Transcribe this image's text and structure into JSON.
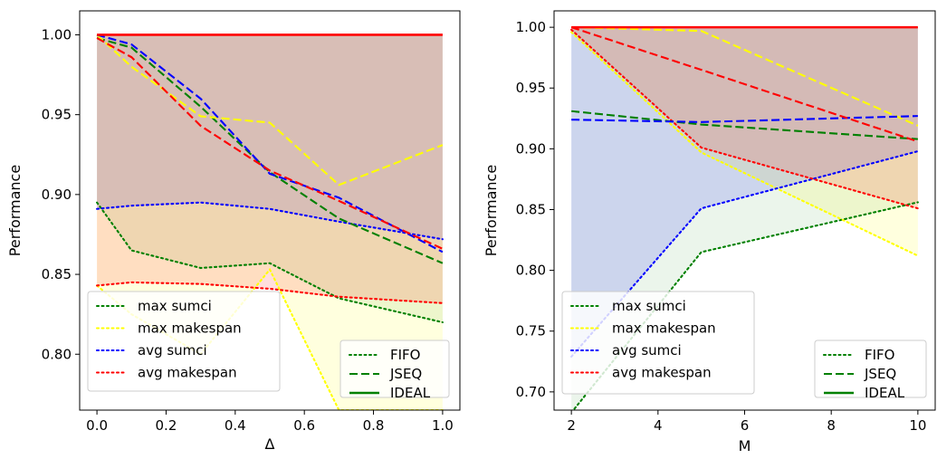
{
  "chart_data": [
    {
      "type": "line",
      "xlabel": "Δ",
      "ylabel": "Performance",
      "xlim": [
        -0.05,
        1.05
      ],
      "ylim": [
        0.765,
        1.015
      ],
      "xticks": [
        0.0,
        0.2,
        0.4,
        0.6,
        0.8,
        1.0
      ],
      "xtick_labels": [
        "0.0",
        "0.2",
        "0.4",
        "0.6",
        "0.8",
        "1.0"
      ],
      "yticks": [
        0.8,
        0.85,
        0.9,
        0.95,
        1.0
      ],
      "ytick_labels": [
        "0.80",
        "0.85",
        "0.90",
        "0.95",
        "1.00"
      ],
      "grid": false,
      "fills": [
        {
          "name": "max sumci",
          "color": "#008000",
          "upper": 1.0,
          "lower": [
            0.895,
            0.865,
            0.854,
            0.857,
            0.835,
            0.82
          ],
          "x": [
            0.0,
            0.1,
            0.3,
            0.5,
            0.7,
            1.0
          ],
          "opacity": 0.08
        },
        {
          "name": "max makespan",
          "color": "#ffff00",
          "upper": 1.0,
          "lower": [
            0.843,
            0.825,
            0.8,
            0.853,
            0.765,
            0.765
          ],
          "x": [
            0.0,
            0.1,
            0.3,
            0.5,
            0.7,
            1.0
          ],
          "opacity": 0.13
        },
        {
          "name": "avg sumci",
          "color": "#0000ff",
          "upper": 1.0,
          "lower": [
            0.891,
            0.893,
            0.895,
            0.891,
            0.883,
            0.872
          ],
          "x": [
            0.0,
            0.1,
            0.3,
            0.5,
            0.7,
            1.0
          ],
          "opacity": 0.11
        },
        {
          "name": "avg makespan",
          "color": "#ff0000",
          "upper": 1.0,
          "lower": [
            0.843,
            0.845,
            0.844,
            0.841,
            0.836,
            0.832
          ],
          "x": [
            0.0,
            0.1,
            0.3,
            0.5,
            0.7,
            1.0
          ],
          "opacity": 0.13
        }
      ],
      "series": [
        {
          "name": "max sumci",
          "metric": "max sumci",
          "algorithm": "FIFO",
          "color": "#008000",
          "style": "dotted",
          "x": [
            0.0,
            0.1,
            0.3,
            0.5,
            0.7,
            1.0
          ],
          "y": [
            0.895,
            0.865,
            0.854,
            0.857,
            0.835,
            0.82
          ]
        },
        {
          "name": "max makespan",
          "metric": "max makespan",
          "algorithm": "FIFO",
          "color": "#ffff00",
          "style": "dotted",
          "x": [
            0.0,
            0.1,
            0.3,
            0.5,
            0.7,
            1.0
          ],
          "y": [
            0.843,
            0.825,
            0.8,
            0.853,
            0.765,
            0.765
          ]
        },
        {
          "name": "avg sumci",
          "metric": "avg sumci",
          "algorithm": "FIFO",
          "color": "#0000ff",
          "style": "dotted",
          "x": [
            0.0,
            0.1,
            0.3,
            0.5,
            0.7,
            1.0
          ],
          "y": [
            0.891,
            0.893,
            0.895,
            0.891,
            0.883,
            0.872
          ]
        },
        {
          "name": "avg makespan",
          "metric": "avg makespan",
          "algorithm": "FIFO",
          "color": "#ff0000",
          "style": "dotted",
          "x": [
            0.0,
            0.1,
            0.3,
            0.5,
            0.7,
            1.0
          ],
          "y": [
            0.843,
            0.845,
            0.844,
            0.841,
            0.836,
            0.832
          ]
        },
        {
          "name": "",
          "metric": "max sumci",
          "algorithm": "JSEQ",
          "color": "#008000",
          "style": "dashed",
          "x": [
            0.0,
            0.1,
            0.3,
            0.5,
            0.7,
            1.0
          ],
          "y": [
            0.998,
            0.992,
            0.955,
            0.914,
            0.885,
            0.857
          ]
        },
        {
          "name": "",
          "metric": "max makespan",
          "algorithm": "JSEQ",
          "color": "#ffff00",
          "style": "dashed",
          "x": [
            0.0,
            0.1,
            0.3,
            0.5,
            0.7,
            1.0
          ],
          "y": [
            1.0,
            0.98,
            0.949,
            0.945,
            0.906,
            0.931
          ]
        },
        {
          "name": "",
          "metric": "avg sumci",
          "algorithm": "JSEQ",
          "color": "#0000ff",
          "style": "dashed",
          "x": [
            0.0,
            0.1,
            0.3,
            0.5,
            0.7,
            1.0
          ],
          "y": [
            1.0,
            0.994,
            0.96,
            0.913,
            0.898,
            0.864
          ]
        },
        {
          "name": "",
          "metric": "avg makespan",
          "algorithm": "JSEQ",
          "color": "#ff0000",
          "style": "dashed",
          "x": [
            0.0,
            0.1,
            0.3,
            0.5,
            0.7,
            1.0
          ],
          "y": [
            0.998,
            0.986,
            0.943,
            0.915,
            0.896,
            0.866
          ]
        },
        {
          "name": "",
          "metric": "all",
          "algorithm": "IDEAL",
          "color": "#ff0000",
          "style": "solid",
          "x": [
            0.0,
            1.0
          ],
          "y": [
            1.0,
            1.0
          ]
        }
      ],
      "legend_metrics": {
        "placement": "lower left",
        "entries": [
          {
            "label": "max sumci",
            "color": "#008000",
            "style": "dotted"
          },
          {
            "label": "max makespan",
            "color": "#ffff00",
            "style": "dotted"
          },
          {
            "label": "avg sumci",
            "color": "#0000ff",
            "style": "dotted"
          },
          {
            "label": "avg makespan",
            "color": "#ff0000",
            "style": "dotted"
          }
        ]
      },
      "legend_algorithms": {
        "placement": "lower right",
        "entries": [
          {
            "label": "FIFO",
            "color": "#008000",
            "style": "dotted"
          },
          {
            "label": "JSEQ",
            "color": "#008000",
            "style": "dashed"
          },
          {
            "label": "IDEAL",
            "color": "#008000",
            "style": "solid"
          }
        ]
      }
    },
    {
      "type": "line",
      "xlabel": "M",
      "ylabel": "Performance",
      "xlim": [
        1.6,
        10.4
      ],
      "ylim": [
        0.685,
        1.0135
      ],
      "xticks": [
        2,
        4,
        6,
        8,
        10
      ],
      "xtick_labels": [
        "2",
        "4",
        "6",
        "8",
        "10"
      ],
      "yticks": [
        0.7,
        0.75,
        0.8,
        0.85,
        0.9,
        0.95,
        1.0
      ],
      "ytick_labels": [
        "0.70",
        "0.75",
        "0.80",
        "0.85",
        "0.90",
        "0.95",
        "1.00"
      ],
      "grid": false,
      "fills": [
        {
          "name": "max sumci",
          "color": "#008000",
          "upper": 1.0,
          "lower": [
            0.683,
            0.815,
            0.856
          ],
          "x": [
            2,
            5,
            10
          ],
          "opacity": 0.08
        },
        {
          "name": "max makespan",
          "color": "#ffff00",
          "upper": 1.0,
          "lower": [
            0.996,
            0.897,
            0.812
          ],
          "x": [
            2,
            5,
            10
          ],
          "opacity": 0.13
        },
        {
          "name": "avg sumci",
          "color": "#0000ff",
          "upper": 1.0,
          "lower": [
            0.729,
            0.851,
            0.898
          ],
          "x": [
            2,
            5,
            10
          ],
          "opacity": 0.13
        },
        {
          "name": "avg makespan",
          "color": "#ff0000",
          "upper": 1.0,
          "lower": [
            0.998,
            0.901,
            0.851
          ],
          "x": [
            2,
            5,
            10
          ],
          "opacity": 0.13
        }
      ],
      "series": [
        {
          "name": "max sumci",
          "metric": "max sumci",
          "algorithm": "FIFO",
          "color": "#008000",
          "style": "dotted",
          "x": [
            2,
            5,
            10
          ],
          "y": [
            0.683,
            0.815,
            0.856
          ]
        },
        {
          "name": "max makespan",
          "metric": "max makespan",
          "algorithm": "FIFO",
          "color": "#ffff00",
          "style": "dotted",
          "x": [
            2,
            5,
            10
          ],
          "y": [
            0.996,
            0.897,
            0.812
          ]
        },
        {
          "name": "avg sumci",
          "metric": "avg sumci",
          "algorithm": "FIFO",
          "color": "#0000ff",
          "style": "dotted",
          "x": [
            2,
            5,
            10
          ],
          "y": [
            0.729,
            0.851,
            0.898
          ]
        },
        {
          "name": "avg makespan",
          "metric": "avg makespan",
          "algorithm": "FIFO",
          "color": "#ff0000",
          "style": "dotted",
          "x": [
            2,
            5,
            10
          ],
          "y": [
            0.998,
            0.901,
            0.851
          ]
        },
        {
          "name": "",
          "metric": "max sumci",
          "algorithm": "JSEQ",
          "color": "#008000",
          "style": "dashed",
          "x": [
            2,
            5,
            10
          ],
          "y": [
            0.931,
            0.92,
            0.908
          ]
        },
        {
          "name": "",
          "metric": "max makespan",
          "algorithm": "JSEQ",
          "color": "#ffff00",
          "style": "dashed",
          "x": [
            2,
            5,
            10
          ],
          "y": [
            1.0,
            0.997,
            0.919
          ]
        },
        {
          "name": "",
          "metric": "avg sumci",
          "algorithm": "JSEQ",
          "color": "#0000ff",
          "style": "dashed",
          "x": [
            2,
            5,
            10
          ],
          "y": [
            0.924,
            0.922,
            0.927
          ]
        },
        {
          "name": "",
          "metric": "avg makespan",
          "algorithm": "JSEQ",
          "color": "#ff0000",
          "style": "dashed",
          "x": [
            2,
            5,
            10
          ],
          "y": [
            1.0,
            0.965,
            0.906
          ]
        },
        {
          "name": "",
          "metric": "all",
          "algorithm": "IDEAL",
          "color": "#ff0000",
          "style": "solid",
          "x": [
            2,
            10
          ],
          "y": [
            1.0,
            1.0
          ]
        }
      ],
      "legend_metrics": {
        "placement": "lower left",
        "entries": [
          {
            "label": "max sumci",
            "color": "#008000",
            "style": "dotted"
          },
          {
            "label": "max makespan",
            "color": "#ffff00",
            "style": "dotted"
          },
          {
            "label": "avg sumci",
            "color": "#0000ff",
            "style": "dotted"
          },
          {
            "label": "avg makespan",
            "color": "#ff0000",
            "style": "dotted"
          }
        ]
      },
      "legend_algorithms": {
        "placement": "lower right",
        "entries": [
          {
            "label": "FIFO",
            "color": "#008000",
            "style": "dotted"
          },
          {
            "label": "JSEQ",
            "color": "#008000",
            "style": "dashed"
          },
          {
            "label": "IDEAL",
            "color": "#008000",
            "style": "solid"
          }
        ]
      }
    }
  ]
}
